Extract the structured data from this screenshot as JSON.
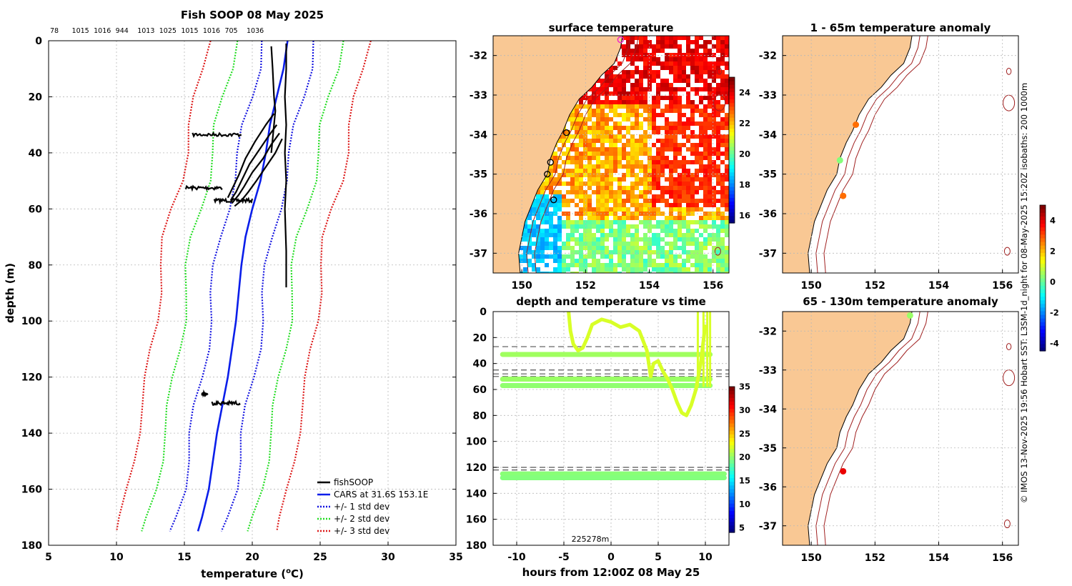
{
  "figure": {
    "side_caption": "© IMOS 13-Nov-2025 19:56 Hobart SST: L3SM-1d_night for 08-May-2025 15:20Z isobaths: 200  1000m",
    "colors": {
      "fishsoop": "#000000",
      "cars": "#0a1eea",
      "std1": "#1414e0",
      "std2": "#22dd22",
      "std3": "#dd1a1a",
      "land": "#f9c894",
      "isobath": "#a02020"
    }
  },
  "chart_data": [
    {
      "id": "profile",
      "type": "line",
      "title": "Fish SOOP 08 May 2025",
      "top_labels": [
        "78",
        "1015",
        "1016",
        "944",
        "1013",
        "1025",
        "1015",
        "1016",
        "705",
        "1036"
      ],
      "xlabel": "temperature (",
      "xlabel_sup": "o",
      "xlabel_tail": "C)",
      "ylabel": "depth (m)",
      "xlim": [
        5,
        35
      ],
      "ylim": [
        180,
        0
      ],
      "xticks": [
        5,
        10,
        15,
        20,
        25,
        30,
        35
      ],
      "yticks": [
        0,
        20,
        40,
        60,
        80,
        100,
        120,
        140,
        160,
        180
      ],
      "legend": [
        "fishSOOP",
        "CARS at 31.6S 153.1E",
        "+/- 1 std dev",
        "+/- 2 std dev",
        "+/- 3 std dev"
      ],
      "cars": {
        "depth": [
          0,
          10,
          20,
          30,
          40,
          50,
          60,
          70,
          80,
          90,
          100,
          110,
          120,
          130,
          140,
          150,
          160,
          170,
          175
        ],
        "temp": [
          22.6,
          22.3,
          21.8,
          21.3,
          21.0,
          20.6,
          20.0,
          19.5,
          19.2,
          19.0,
          18.8,
          18.5,
          18.2,
          17.8,
          17.4,
          17.1,
          16.8,
          16.3,
          16.0
        ]
      },
      "std_dev": [
        1.9,
        3.9,
        5.9
      ],
      "fishsoop_profiles": [
        {
          "temp": [
            22.5,
            22.5,
            22.4,
            22.5,
            22.4,
            22.5,
            22.4,
            22.5,
            22.5
          ],
          "depth": [
            1,
            10,
            20,
            30,
            40,
            50,
            60,
            75,
            88
          ]
        },
        {
          "temp": [
            21.4,
            21.5,
            21.6,
            21.7,
            21.5,
            21.4
          ],
          "depth": [
            2,
            10,
            20,
            25,
            35,
            40
          ]
        },
        {
          "temp": [
            21.6,
            21.0,
            20.2,
            19.5,
            19.0,
            18.6,
            18.2
          ],
          "depth": [
            26,
            30,
            36,
            42,
            48,
            52,
            56
          ]
        },
        {
          "temp": [
            21.8,
            21.2,
            20.5,
            19.8,
            19.2,
            18.8,
            18.4
          ],
          "depth": [
            30,
            34,
            39,
            44,
            50,
            54,
            57
          ]
        },
        {
          "temp": [
            22.0,
            21.4,
            20.8,
            20.0,
            19.4,
            19.0,
            18.5
          ],
          "depth": [
            33,
            37,
            42,
            47,
            52,
            55,
            58
          ]
        },
        {
          "temp": [
            22.2,
            21.7,
            21.0,
            20.3,
            19.7,
            19.2,
            18.7
          ],
          "depth": [
            35,
            40,
            45,
            50,
            54,
            57,
            59
          ]
        }
      ],
      "fishsoop_clusters": [
        {
          "depth": 33.5,
          "t_min": 15.6,
          "t_max": 19.2
        },
        {
          "depth": 52.5,
          "t_min": 15.1,
          "t_max": 17.8
        },
        {
          "depth": 57.0,
          "t_min": 17.2,
          "t_max": 20.0
        },
        {
          "depth": 126.0,
          "t_min": 16.3,
          "t_max": 16.7
        },
        {
          "depth": 129.3,
          "t_min": 17.0,
          "t_max": 19.1
        }
      ]
    },
    {
      "id": "sst_map",
      "type": "heatmap",
      "title": "surface temperature",
      "xlim": [
        149.1,
        156.5
      ],
      "ylim": [
        -37.5,
        -31.5
      ],
      "xticks": [
        150,
        152,
        154,
        156
      ],
      "yticks": [
        -32,
        -33,
        -34,
        -35,
        -36,
        -37
      ],
      "colorbar_ticks": [
        16,
        18,
        20,
        22,
        24
      ],
      "colorbar_range": [
        15.5,
        25
      ],
      "boat_tracks": [
        {
          "lon": 151.4,
          "lat": -33.95,
          "color": "#000000"
        },
        {
          "lon": 150.9,
          "lat": -34.7,
          "color": "#000000"
        },
        {
          "lon": 150.8,
          "lat": -35.0,
          "color": "#000000"
        },
        {
          "lon": 151.0,
          "lat": -35.65,
          "color": "#000000"
        },
        {
          "lon": 153.1,
          "lat": -31.6,
          "color": "#ee22cc"
        }
      ]
    },
    {
      "id": "depth_time",
      "type": "scatter",
      "title": "depth and temperature vs time",
      "xlabel": "hours from 12:00Z 08 May 25",
      "xlim": [
        -12.5,
        12.5
      ],
      "ylim": [
        180,
        0
      ],
      "xticks": [
        -10,
        -5,
        0,
        5,
        10
      ],
      "yticks": [
        0,
        20,
        40,
        60,
        80,
        100,
        120,
        140,
        160,
        180
      ],
      "colorbar_ticks": [
        5,
        10,
        15,
        20,
        25,
        30,
        35
      ],
      "colorbar_range": [
        4,
        35
      ],
      "annotation": "225278m",
      "dashed_depths": [
        27,
        45,
        48,
        50,
        120,
        122
      ],
      "bands": [
        {
          "depth": 33,
          "x_start": -11.5,
          "x_end": 10.5,
          "temp": 20.5
        },
        {
          "depth": 52,
          "x_start": -11.5,
          "x_end": 10.5,
          "temp": 20.3
        },
        {
          "depth": 57,
          "x_start": -11.5,
          "x_end": 10.5,
          "temp": 20.0
        },
        {
          "depth": 125,
          "x_start": -11.5,
          "x_end": 12.0,
          "temp": 19.8
        },
        {
          "depth": 128,
          "x_start": -11.5,
          "x_end": 12.0,
          "temp": 19.6
        }
      ],
      "series_curve": {
        "temp": 22.2,
        "x": [
          -4.5,
          -4.3,
          -4.0,
          -3.5,
          -3.0,
          -2.5,
          -2.0,
          -1.0,
          0.0,
          1.0,
          2.0,
          3.0,
          3.8,
          4.2,
          4.5,
          5.0,
          5.5,
          6.0,
          6.5,
          7.0,
          7.5,
          8.0,
          8.5,
          9.0,
          9.5,
          10.0
        ],
        "depth": [
          0,
          15,
          25,
          30,
          28,
          20,
          10,
          6,
          8,
          12,
          10,
          15,
          30,
          50,
          40,
          38,
          46,
          52,
          60,
          70,
          78,
          80,
          72,
          60,
          40,
          10
        ]
      }
    },
    {
      "id": "anomaly_shallow",
      "type": "scatter",
      "title": "1 - 65m temperature anomaly",
      "xlim": [
        149.1,
        156.5
      ],
      "ylim": [
        -37.5,
        -31.5
      ],
      "xticks": [
        150,
        152,
        154,
        156
      ],
      "yticks": [
        -32,
        -33,
        -34,
        -35,
        -36,
        -37
      ],
      "colorbar_ticks": [
        4,
        2,
        0,
        -2,
        -4
      ],
      "colorbar_range": [
        -4.5,
        5
      ],
      "points": [
        {
          "lon": 151.4,
          "lat": -33.75,
          "anomaly": 2.8
        },
        {
          "lon": 150.9,
          "lat": -34.65,
          "anomaly": 0.3
        },
        {
          "lon": 151.0,
          "lat": -35.55,
          "anomaly": 2.8
        }
      ]
    },
    {
      "id": "anomaly_deep",
      "type": "scatter",
      "title": "65 - 130m temperature anomaly",
      "xlim": [
        149.1,
        156.5
      ],
      "ylim": [
        -37.5,
        -31.5
      ],
      "xticks": [
        150,
        152,
        154,
        156
      ],
      "yticks": [
        -32,
        -33,
        -34,
        -35,
        -36,
        -37
      ],
      "points": [
        {
          "lon": 153.1,
          "lat": -31.6,
          "anomaly": 0.5
        },
        {
          "lon": 151.0,
          "lat": -35.6,
          "anomaly": 4.0
        }
      ]
    }
  ]
}
